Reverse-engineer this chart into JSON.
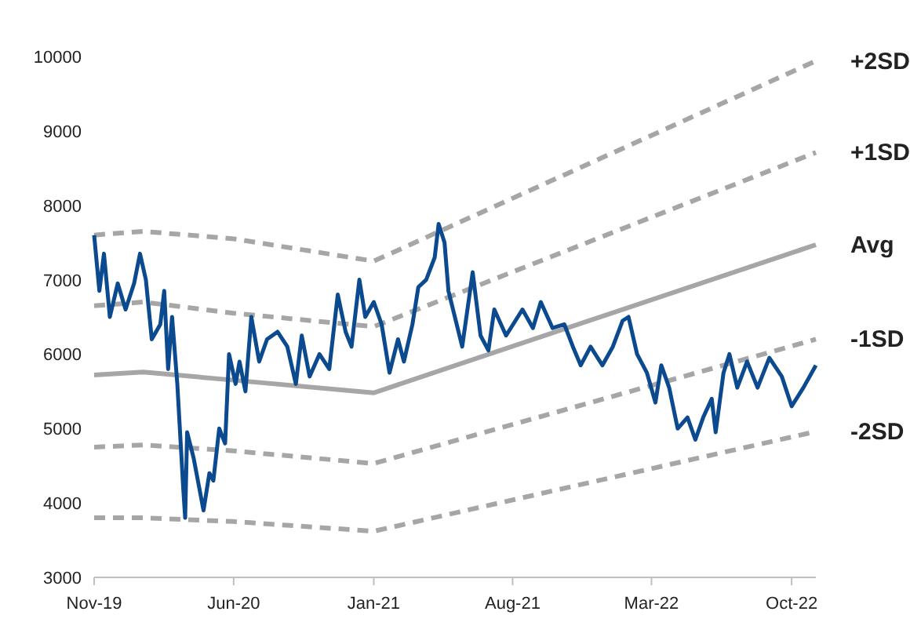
{
  "chart_data": {
    "type": "line",
    "xlim": [
      "2019-11-01",
      "2022-11-07"
    ],
    "xticks": [
      {
        "value": "2019-11-01",
        "label": "Nov-19"
      },
      {
        "value": "2020-06-01",
        "label": "Jun-20"
      },
      {
        "value": "2021-01-01",
        "label": "Jan-21"
      },
      {
        "value": "2021-08-01",
        "label": "Aug-21"
      },
      {
        "value": "2022-03-01",
        "label": "Mar-22"
      },
      {
        "value": "2022-10-01",
        "label": "Oct-22"
      }
    ],
    "ylim": [
      3000,
      10000
    ],
    "yticks": [
      3000,
      4000,
      5000,
      6000,
      7000,
      8000,
      9000,
      10000
    ],
    "grid": false,
    "legend": false,
    "marker": "none",
    "series": [
      {
        "name": "+2SD",
        "color": "#a6a6a6",
        "line_style": "dashed",
        "x": [
          "2019-11-01",
          "2020-01-15",
          "2020-06-01",
          "2021-01-01",
          "2022-11-07"
        ],
        "values": [
          7600,
          7650,
          7550,
          7250,
          9940
        ]
      },
      {
        "name": "+1SD",
        "color": "#a6a6a6",
        "line_style": "dashed",
        "x": [
          "2019-11-01",
          "2020-01-15",
          "2020-06-01",
          "2021-01-01",
          "2022-11-07"
        ],
        "values": [
          6650,
          6700,
          6550,
          6370,
          8710
        ]
      },
      {
        "name": "Avg",
        "color": "#a6a6a6",
        "line_style": "solid",
        "x": [
          "2019-11-01",
          "2020-01-15",
          "2020-06-01",
          "2021-01-01",
          "2022-11-07"
        ],
        "values": [
          5720,
          5760,
          5650,
          5480,
          7470
        ]
      },
      {
        "name": "-1SD",
        "color": "#a6a6a6",
        "line_style": "dashed",
        "x": [
          "2019-11-01",
          "2020-01-15",
          "2020-06-01",
          "2021-01-01",
          "2022-11-07"
        ],
        "values": [
          4750,
          4780,
          4700,
          4530,
          6200
        ]
      },
      {
        "name": "-2SD",
        "color": "#a6a6a6",
        "line_style": "dashed",
        "x": [
          "2019-11-01",
          "2020-01-15",
          "2020-06-01",
          "2021-01-01",
          "2022-11-07"
        ],
        "values": [
          3800,
          3800,
          3750,
          3620,
          4960
        ]
      },
      {
        "color": "#0b4a8f",
        "line_style": "solid",
        "x": [
          "2019-11-01",
          "2019-11-09",
          "2019-11-16",
          "2019-11-25",
          "2019-12-07",
          "2019-12-19",
          "2020-01-01",
          "2020-01-10",
          "2020-01-19",
          "2020-01-28",
          "2020-02-10",
          "2020-02-16",
          "2020-02-22",
          "2020-02-28",
          "2020-03-07",
          "2020-03-16",
          "2020-03-19",
          "2020-03-22",
          "2020-04-01",
          "2020-04-16",
          "2020-04-25",
          "2020-05-01",
          "2020-05-10",
          "2020-05-19",
          "2020-05-25",
          "2020-06-04",
          "2020-06-10",
          "2020-06-19",
          "2020-06-28",
          "2020-07-10",
          "2020-07-22",
          "2020-08-07",
          "2020-08-22",
          "2020-09-04",
          "2020-09-13",
          "2020-09-25",
          "2020-10-10",
          "2020-10-25",
          "2020-11-07",
          "2020-11-19",
          "2020-11-28",
          "2020-12-10",
          "2020-12-19",
          "2021-01-01",
          "2021-01-13",
          "2021-01-25",
          "2021-02-07",
          "2021-02-16",
          "2021-03-01",
          "2021-03-10",
          "2021-03-22",
          "2021-04-04",
          "2021-04-10",
          "2021-04-19",
          "2021-04-25",
          "2021-05-16",
          "2021-06-01",
          "2021-06-13",
          "2021-06-25",
          "2021-07-04",
          "2021-07-22",
          "2021-08-16",
          "2021-09-01",
          "2021-09-13",
          "2021-10-01",
          "2021-10-19",
          "2021-11-01",
          "2021-11-13",
          "2021-11-28",
          "2021-12-16",
          "2022-01-01",
          "2022-01-16",
          "2022-01-25",
          "2022-02-07",
          "2022-02-22",
          "2022-03-07",
          "2022-03-16",
          "2022-03-28",
          "2022-04-10",
          "2022-04-25",
          "2022-05-07",
          "2022-05-19",
          "2022-06-01",
          "2022-06-07",
          "2022-06-19",
          "2022-06-28",
          "2022-07-10",
          "2022-07-25",
          "2022-08-10",
          "2022-08-28",
          "2022-09-16",
          "2022-10-01",
          "2022-10-19",
          "2022-11-07"
        ],
        "values": [
          7600,
          6850,
          7350,
          6500,
          6950,
          6600,
          6950,
          7350,
          7000,
          6200,
          6400,
          6850,
          5800,
          6500,
          5600,
          4200,
          3800,
          4950,
          4600,
          3900,
          4400,
          4300,
          5000,
          4800,
          6000,
          5600,
          5900,
          5500,
          6500,
          5900,
          6200,
          6300,
          6100,
          5600,
          6250,
          5700,
          6000,
          5800,
          6800,
          6300,
          6100,
          7000,
          6500,
          6700,
          6400,
          5750,
          6200,
          5900,
          6400,
          6900,
          7000,
          7300,
          7750,
          7500,
          6850,
          6100,
          7100,
          6250,
          6050,
          6600,
          6250,
          6600,
          6350,
          6700,
          6350,
          6400,
          6100,
          5850,
          6100,
          5850,
          6100,
          6450,
          6500,
          6000,
          5750,
          5350,
          5850,
          5550,
          5000,
          5150,
          4850,
          5150,
          5400,
          4950,
          5750,
          6000,
          5550,
          5900,
          5550,
          5950,
          5700,
          5300,
          5550,
          5850
        ]
      }
    ]
  }
}
